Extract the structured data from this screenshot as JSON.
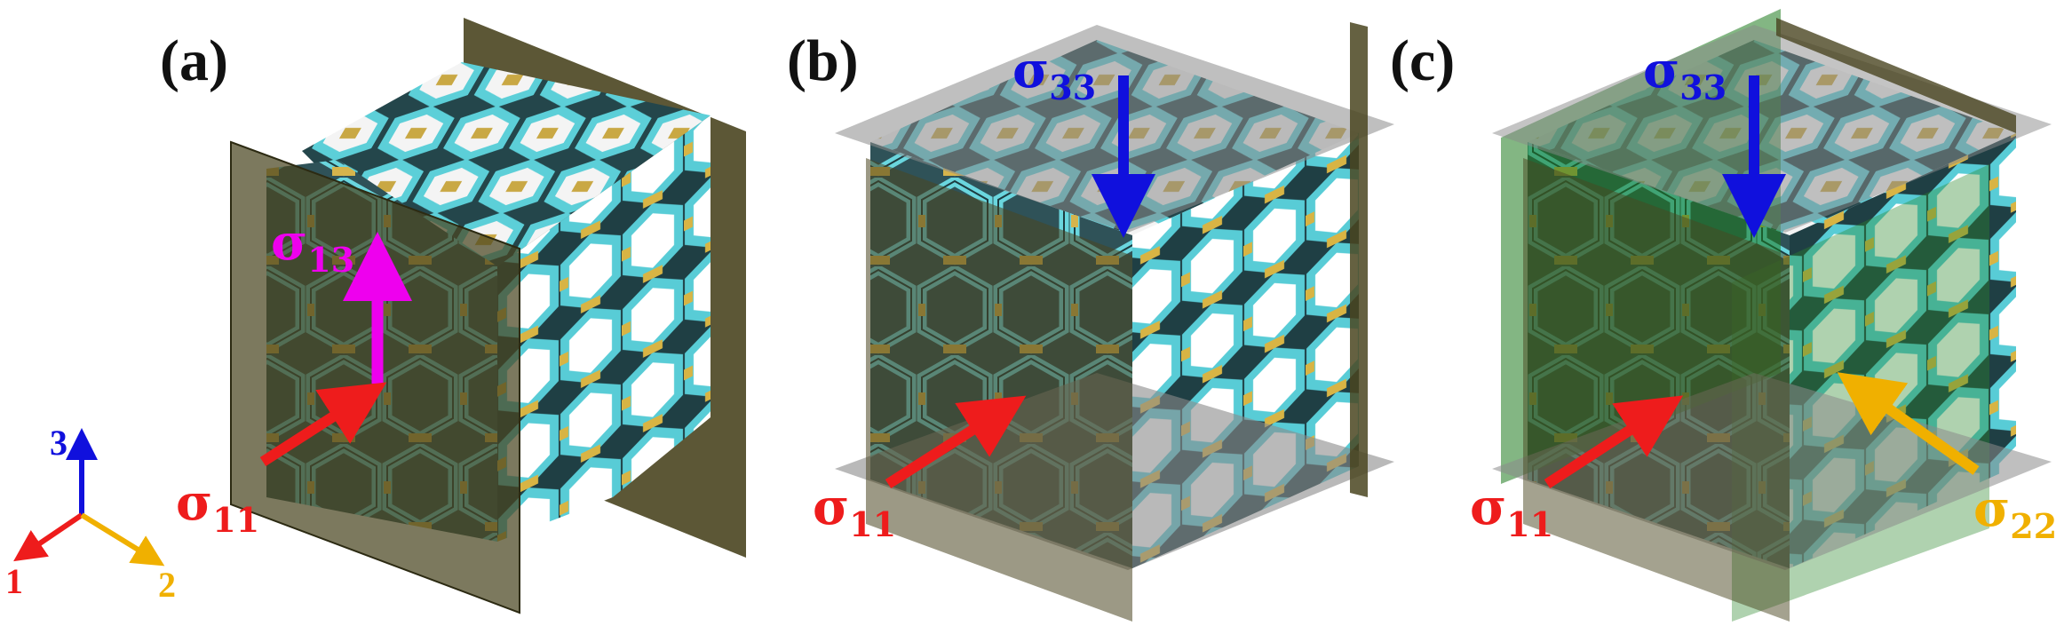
{
  "panels": [
    {
      "label": "(a)"
    },
    {
      "label": "(b)"
    },
    {
      "label": "(c)"
    }
  ],
  "stresses": {
    "a_s13": {
      "sym": "σ",
      "sub": "13"
    },
    "a_s11": {
      "sym": "σ",
      "sub": "11"
    },
    "b_s33": {
      "sym": "σ",
      "sub": "33"
    },
    "b_s11": {
      "sym": "σ",
      "sub": "11"
    },
    "c_s33": {
      "sym": "σ",
      "sub": "33"
    },
    "c_s11": {
      "sym": "σ",
      "sub": "11"
    },
    "c_s22": {
      "sym": "σ",
      "sub": "22"
    }
  },
  "axes": {
    "x1": "1",
    "x2": "2",
    "x3": "3"
  },
  "colors": {
    "s11": "#ee1c1c",
    "s13": "#ee00ee",
    "s33": "#1010dd",
    "s22": "#f0b000",
    "lattice_face": "#5ad2dc",
    "lattice_strut": "#d2b24a",
    "plane_olive": "#4a4520",
    "plane_gray": "#8a8a8a",
    "plane_green": "#1e7a1e"
  }
}
